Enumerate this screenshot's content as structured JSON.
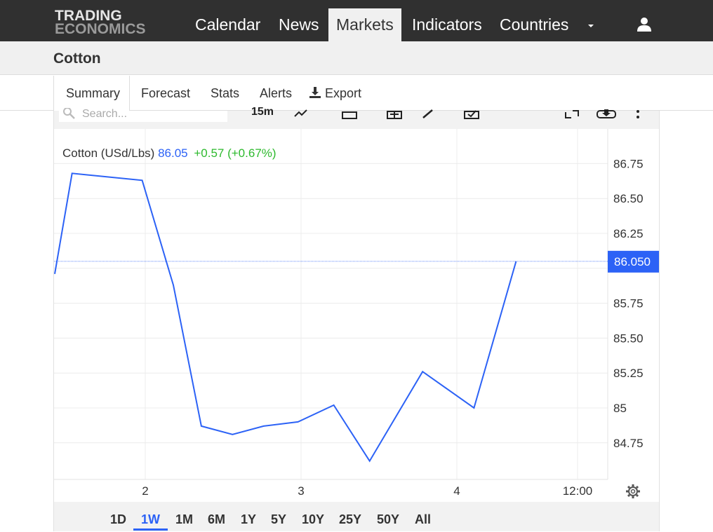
{
  "brand": {
    "line1": "TRADING",
    "line2": "ECONOMICS"
  },
  "nav": [
    {
      "label": "Calendar"
    },
    {
      "label": "News"
    },
    {
      "label": "Markets"
    },
    {
      "label": "Indicators"
    },
    {
      "label": "Countries"
    }
  ],
  "page": {
    "title": "Cotton"
  },
  "tabs": [
    {
      "label": "Summary"
    },
    {
      "label": "Forecast"
    },
    {
      "label": "Stats"
    },
    {
      "label": "Alerts"
    },
    {
      "label": "Export"
    }
  ],
  "toolbar": {
    "search_placeholder": "Search...",
    "interval": "15m"
  },
  "legend": {
    "name": "Cotton (USd/Lbs)",
    "price": "86.05",
    "change": "+0.57 (+0.67%)"
  },
  "colors": {
    "line": "#2c62f6",
    "change": "#2db92d",
    "topbar": "#303030"
  },
  "ranges": [
    "1D",
    "1W",
    "1M",
    "6M",
    "1Y",
    "5Y",
    "10Y",
    "25Y",
    "50Y",
    "All"
  ],
  "active_range": "1W",
  "chart_data": {
    "type": "line",
    "series": [
      {
        "name": "Cotton (USd/Lbs)",
        "x": [
          1.24,
          1.53,
          1.98,
          2.18,
          2.36,
          2.56,
          2.76,
          2.98,
          3.21,
          3.44,
          3.78,
          4.11,
          4.38
        ],
        "values": [
          85.96,
          86.68,
          86.63,
          85.88,
          84.87,
          84.81,
          84.87,
          84.9,
          85.02,
          84.62,
          85.26,
          85.0,
          86.05
        ]
      }
    ],
    "last_value_label": "86.050",
    "y_ticks": [
      84.75,
      85,
      85.25,
      85.5,
      85.75,
      86.25,
      86.5,
      86.75
    ],
    "y_tick_labels": [
      "84.75",
      "85",
      "85.25",
      "85.50",
      "85.75",
      "86.25",
      "86.50",
      "86.75"
    ],
    "x_ticks": [
      "2",
      "3",
      "4",
      "12:00"
    ],
    "grid": true
  }
}
